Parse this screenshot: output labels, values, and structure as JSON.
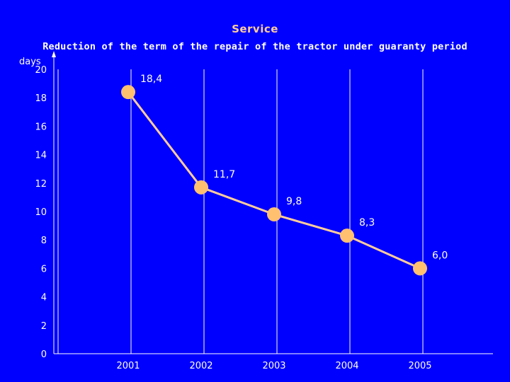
{
  "chart_data": {
    "type": "line",
    "title": "Service",
    "subtitle": "Reduction of the term of the repair of the tractor under guaranty period",
    "ylabel": "days",
    "xlabel": "",
    "categories": [
      "2001",
      "2002",
      "2003",
      "2004",
      "2005"
    ],
    "series": [
      {
        "values": [
          18.4,
          11.7,
          9.8,
          8.3,
          6.0
        ]
      }
    ],
    "data_labels": [
      "18,4",
      "11,7",
      "9,8",
      "8,3",
      "6,0"
    ],
    "y_ticks": [
      0,
      2,
      4,
      6,
      8,
      10,
      12,
      14,
      16,
      18,
      20
    ],
    "ylim": [
      0,
      20
    ],
    "grid": "vertical",
    "legend": "none",
    "colors": {
      "background": "#0000FF",
      "line": "#FFCC99",
      "marker": "#FFC070",
      "text": "#FFFFFF",
      "title": "#FFCC99"
    }
  }
}
